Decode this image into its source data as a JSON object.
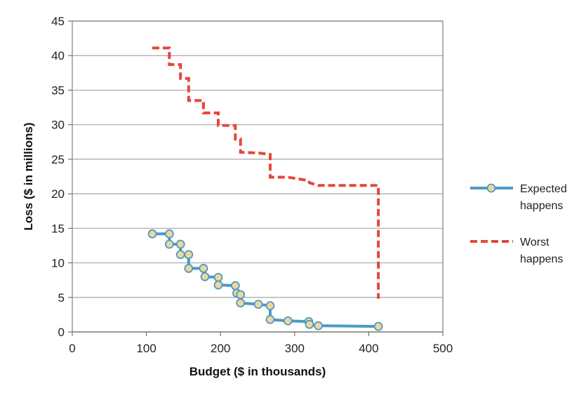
{
  "chart_data": {
    "type": "line",
    "xlabel": "Budget ($ in thousands)",
    "ylabel": "Loss ($ in millions)",
    "xlim": [
      0,
      500
    ],
    "ylim": [
      0,
      45
    ],
    "xticks": [
      0,
      100,
      200,
      300,
      400,
      500
    ],
    "yticks": [
      0,
      5,
      10,
      15,
      20,
      25,
      30,
      35,
      40,
      45
    ],
    "grid": "horizontal",
    "legend_position": "right",
    "series": [
      {
        "name": "Expected happens",
        "color": "#4a9ac9",
        "marker_fill": "#f0d69a",
        "marker_stroke": "#4a9ac9",
        "style": "solid",
        "step": true,
        "markers": true,
        "points": [
          [
            108,
            14.2
          ],
          [
            131,
            14.2
          ],
          [
            131,
            12.7
          ],
          [
            146,
            12.7
          ],
          [
            146,
            11.2
          ],
          [
            157,
            11.2
          ],
          [
            157,
            9.2
          ],
          [
            177,
            9.2
          ],
          [
            179,
            8.0
          ],
          [
            197,
            7.9
          ],
          [
            197,
            6.8
          ],
          [
            220,
            6.7
          ],
          [
            222,
            5.6
          ],
          [
            227,
            5.4
          ],
          [
            227,
            4.2
          ],
          [
            251,
            4.0
          ],
          [
            267,
            3.8
          ],
          [
            267,
            1.8
          ],
          [
            291,
            1.6
          ],
          [
            319,
            1.5
          ],
          [
            320,
            1.1
          ],
          [
            332,
            0.9
          ],
          [
            413,
            0.8
          ]
        ]
      },
      {
        "name": "Worst happens",
        "color": "#e5473c",
        "style": "dashed",
        "step": true,
        "markers": false,
        "points": [
          [
            108,
            41.1
          ],
          [
            131,
            41.1
          ],
          [
            131,
            38.7
          ],
          [
            146,
            38.7
          ],
          [
            146,
            36.7
          ],
          [
            157,
            36.7
          ],
          [
            157,
            33.5
          ],
          [
            177,
            33.5
          ],
          [
            177,
            31.7
          ],
          [
            197,
            31.7
          ],
          [
            197,
            29.9
          ],
          [
            220,
            29.9
          ],
          [
            220,
            27.9
          ],
          [
            227,
            27.9
          ],
          [
            227,
            26.0
          ],
          [
            251,
            25.9
          ],
          [
            267,
            25.7
          ],
          [
            267,
            22.4
          ],
          [
            291,
            22.4
          ],
          [
            319,
            21.9
          ],
          [
            320,
            21.6
          ],
          [
            332,
            21.2
          ],
          [
            413,
            21.2
          ],
          [
            413,
            4.8
          ]
        ]
      }
    ],
    "legend": [
      {
        "lines": [
          "Expected",
          "happens"
        ]
      },
      {
        "lines": [
          "Worst",
          "happens"
        ]
      }
    ]
  }
}
